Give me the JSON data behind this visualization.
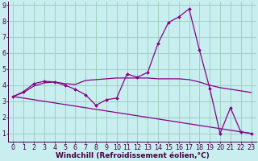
{
  "bg_color": "#c8eef0",
  "line_color": "#880088",
  "grid_color": "#99ccbb",
  "xlabel": "Windchill (Refroidissement éolien,°C)",
  "xlabel_fontsize": 6.5,
  "tick_fontsize": 5.8,
  "ylim": [
    0.5,
    9.2
  ],
  "xlim": [
    -0.5,
    23.5
  ],
  "yticks": [
    1,
    2,
    3,
    4,
    5,
    6,
    7,
    8,
    9
  ],
  "xticks": [
    0,
    1,
    2,
    3,
    4,
    5,
    6,
    7,
    8,
    9,
    10,
    11,
    12,
    13,
    14,
    15,
    16,
    17,
    18,
    19,
    20,
    21,
    22,
    23
  ],
  "series1_x": [
    0,
    1,
    2,
    3,
    4,
    5,
    6,
    7,
    8,
    9,
    10,
    11,
    12,
    13,
    14,
    15,
    16,
    17,
    18,
    19,
    20,
    21,
    22,
    23
  ],
  "series1_y": [
    3.3,
    3.6,
    4.1,
    4.25,
    4.2,
    4.0,
    3.75,
    3.4,
    2.75,
    3.1,
    3.2,
    4.7,
    4.5,
    4.8,
    6.6,
    7.9,
    8.25,
    8.75,
    6.2,
    3.8,
    1.0,
    2.6,
    1.1,
    1.0
  ],
  "series2_x": [
    0,
    1,
    2,
    3,
    4,
    5,
    6,
    7,
    8,
    9,
    10,
    11,
    12,
    13,
    14,
    15,
    16,
    17,
    18,
    19,
    20,
    21,
    22,
    23
  ],
  "series2_y": [
    3.3,
    3.55,
    3.95,
    4.15,
    4.2,
    4.1,
    4.05,
    4.3,
    4.35,
    4.4,
    4.45,
    4.45,
    4.45,
    4.45,
    4.4,
    4.4,
    4.4,
    4.35,
    4.2,
    4.0,
    3.85,
    3.75,
    3.65,
    3.55
  ],
  "series3_x": [
    0,
    23
  ],
  "series3_y": [
    3.3,
    1.0
  ],
  "spine_color": "#440044",
  "tick_color": "#440044"
}
